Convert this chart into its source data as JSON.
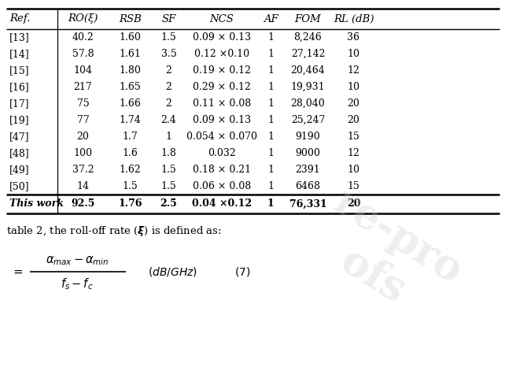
{
  "headers": [
    "Ref.",
    "RO(ξ)",
    "RSB",
    "SF",
    "NCS",
    "AF",
    "FOM",
    "RL (dB)"
  ],
  "rows": [
    [
      "[13]",
      "40.2",
      "1.60",
      "1.5",
      "0.09 × 0.13",
      "1",
      "8,246",
      "36"
    ],
    [
      "[14]",
      "57.8",
      "1.61",
      "3.5",
      "0.12 ×0.10",
      "1",
      "27,142",
      "10"
    ],
    [
      "[15]",
      "104",
      "1.80",
      "2",
      "0.19 × 0.12",
      "1",
      "20,464",
      "12"
    ],
    [
      "[16]",
      "217",
      "1.65",
      "2",
      "0.29 × 0.12",
      "1",
      "19,931",
      "10"
    ],
    [
      "[17]",
      "75",
      "1.66",
      "2",
      "0.11 × 0.08",
      "1",
      "28,040",
      "20"
    ],
    [
      "[19]",
      "77",
      "1.74",
      "2.4",
      "0.09 × 0.13",
      "1",
      "25,247",
      "20"
    ],
    [
      "[47]",
      "20",
      "1.7",
      "1",
      "0.054 × 0.070",
      "1",
      "9190",
      "15"
    ],
    [
      "[48]",
      "100",
      "1.6",
      "1.8",
      "0.032",
      "1",
      "9000",
      "12"
    ],
    [
      "[49]",
      "37.2",
      "1.62",
      "1.5",
      "0.18 × 0.21",
      "1",
      "2391",
      "10"
    ],
    [
      "[50]",
      "14",
      "1.5",
      "1.5",
      "0.06 × 0.08",
      "1",
      "6468",
      "15"
    ]
  ],
  "last_row": [
    "This work",
    "92.5",
    "1.76",
    "2.5",
    "0.04 ×0.12",
    "1",
    "76,331",
    "20"
  ],
  "bg_color": "#ffffff"
}
